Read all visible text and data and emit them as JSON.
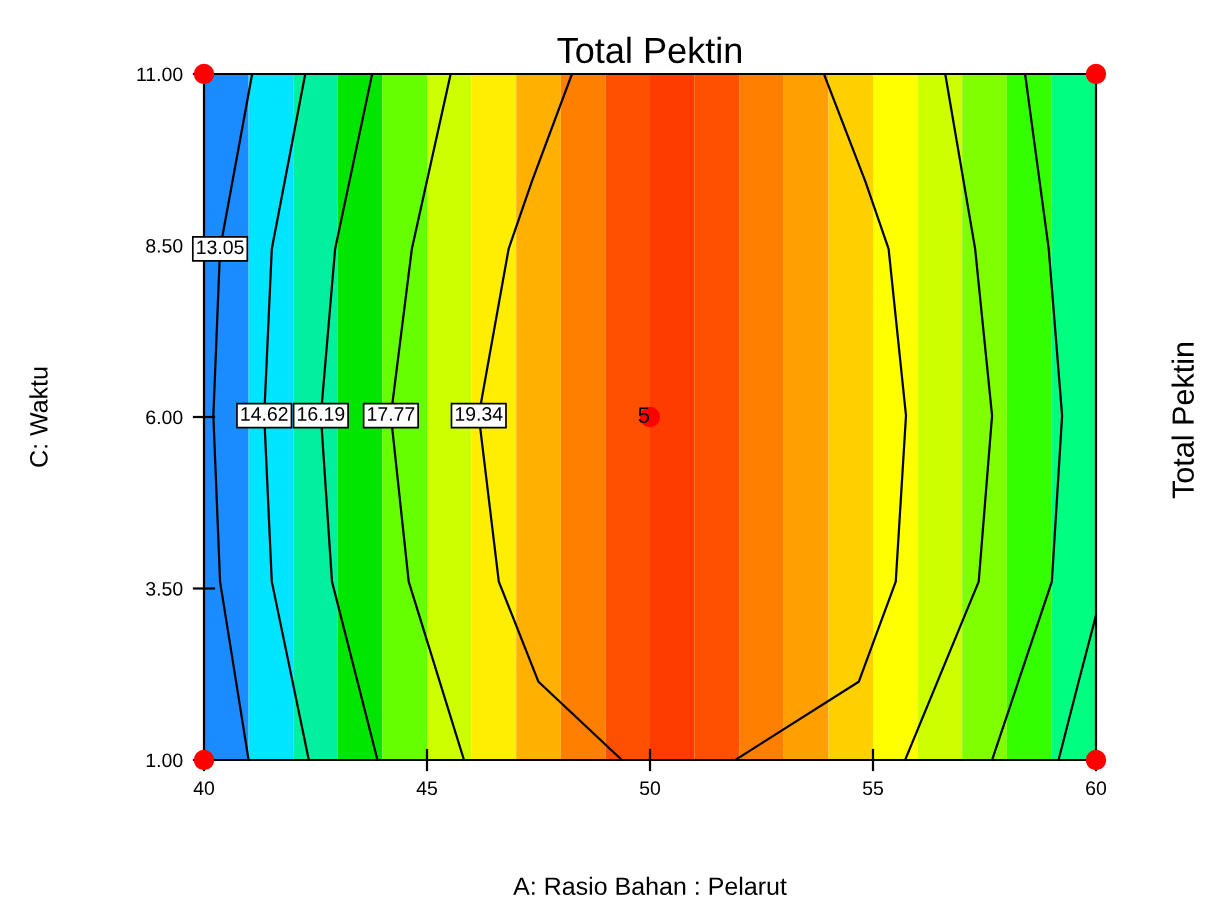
{
  "chart_data": {
    "type": "line",
    "title": "Total Pektin",
    "xlabel": "A: Rasio Bahan : Pelarut",
    "ylabel": "C: Waktu",
    "xlim": [
      40,
      60
    ],
    "ylim": [
      1,
      11
    ],
    "xticks": [
      40,
      45,
      50,
      55,
      60
    ],
    "yticks": [
      {
        "value": 1,
        "label": "1.00"
      },
      {
        "value": 3.5,
        "label": "3.50"
      },
      {
        "value": 6,
        "label": "6.00"
      },
      {
        "value": 8.5,
        "label": "8.50"
      },
      {
        "value": 11,
        "label": "11.00"
      }
    ],
    "grid": false,
    "legend": false,
    "marker": "none",
    "line_style": "solid",
    "series": [
      {
        "name": "13.05",
        "color": "#000000",
        "x": [
          41.08,
          40.36,
          40.21,
          40.36,
          41.0
        ],
        "values": [
          11,
          8.45,
          6.02,
          3.6,
          1
        ]
      },
      {
        "name": "14.62",
        "color": "#000000",
        "x": [
          42.27,
          41.52,
          41.35,
          41.52,
          42.35,
          null,
          60,
          59.61,
          59.16
        ],
        "values": [
          11,
          8.45,
          6.02,
          3.6,
          1,
          null,
          3.11,
          2.14,
          1
        ]
      },
      {
        "name": "16.19",
        "color": "#000000",
        "x": [
          43.77,
          42.94,
          42.62,
          42.87,
          43.89,
          null,
          58.41,
          58.94,
          59.24,
          59.01,
          57.67
        ],
        "values": [
          11,
          8.45,
          6.02,
          3.6,
          1,
          null,
          11,
          8.45,
          6.02,
          3.6,
          1
        ]
      },
      {
        "name": "17.77",
        "color": "#000000",
        "x": [
          45.53,
          44.66,
          44.19,
          44.59,
          45.83,
          null,
          56.62,
          57.29,
          57.67,
          57.37,
          55.72
        ],
        "values": [
          11,
          8.45,
          6.02,
          3.6,
          1,
          null,
          11,
          8.45,
          6.02,
          3.6,
          1
        ]
      },
      {
        "name": "19.34",
        "color": "#000000",
        "x": [
          48.25,
          47.35,
          46.83,
          46.16,
          46.61,
          47.5,
          49.37,
          null,
          53.9,
          54.83,
          55.35,
          55.74,
          55.51,
          54.68,
          51.91
        ],
        "values": [
          11,
          9.43,
          8.45,
          6.02,
          3.6,
          2.14,
          1,
          null,
          11,
          9.43,
          8.45,
          6.02,
          3.6,
          2.14,
          1
        ]
      },
      {
        "type": "scatter",
        "color": "#ff0000",
        "marker": "circle",
        "x": [
          40,
          40,
          60,
          60,
          50
        ],
        "values": [
          1,
          11,
          1,
          11,
          6
        ]
      }
    ],
    "bands": [
      {
        "axis": "x",
        "from": 40,
        "to": 41,
        "color": "#1a8cff"
      },
      {
        "axis": "x",
        "from": 41,
        "to": 42,
        "color": "#00e5ff"
      },
      {
        "axis": "x",
        "from": 42,
        "to": 43,
        "color": "#00f0a0"
      },
      {
        "axis": "x",
        "from": 43,
        "to": 44,
        "color": "#00e600"
      },
      {
        "axis": "x",
        "from": 44,
        "to": 45,
        "color": "#66ff00"
      },
      {
        "axis": "x",
        "from": 45,
        "to": 46,
        "color": "#ccff00"
      },
      {
        "axis": "x",
        "from": 46,
        "to": 47,
        "color": "#ffee00"
      },
      {
        "axis": "x",
        "from": 47,
        "to": 48,
        "color": "#ffb000"
      },
      {
        "axis": "x",
        "from": 48,
        "to": 49,
        "color": "#ff8000"
      },
      {
        "axis": "x",
        "from": 49,
        "to": 50,
        "color": "#ff5000"
      },
      {
        "axis": "x",
        "from": 50,
        "to": 51,
        "color": "#ff3c00"
      },
      {
        "axis": "x",
        "from": 51,
        "to": 52,
        "color": "#ff5000"
      },
      {
        "axis": "x",
        "from": 52,
        "to": 53,
        "color": "#ff8000"
      },
      {
        "axis": "x",
        "from": 53,
        "to": 54,
        "color": "#ffa000"
      },
      {
        "axis": "x",
        "from": 54,
        "to": 55,
        "color": "#ffd000"
      },
      {
        "axis": "x",
        "from": 55,
        "to": 56,
        "color": "#ffff00"
      },
      {
        "axis": "x",
        "from": 56,
        "to": 57,
        "color": "#ccff00"
      },
      {
        "axis": "x",
        "from": 57,
        "to": 58,
        "color": "#80ff00"
      },
      {
        "axis": "x",
        "from": 58,
        "to": 59,
        "color": "#33ff00"
      },
      {
        "axis": "x",
        "from": 59,
        "to": 60,
        "color": "#00ff80"
      }
    ],
    "annotations": [
      {
        "text": "5",
        "x": 50,
        "y": 6
      },
      "Total Pektin"
    ]
  }
}
